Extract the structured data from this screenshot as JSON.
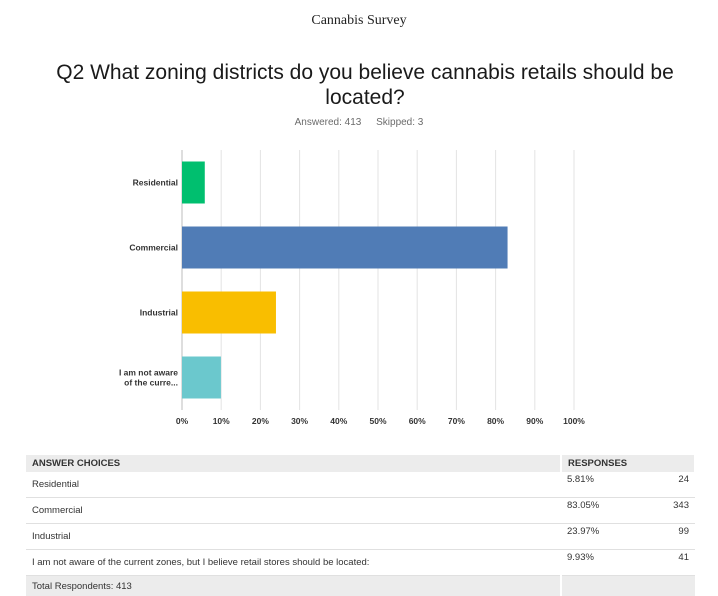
{
  "document_title": "Cannabis Survey",
  "question": {
    "title": "Q2 What zoning districts do you believe cannabis retails should be located?",
    "answered": "Answered: 413",
    "skipped": "Skipped: 3"
  },
  "chart_data": {
    "type": "bar",
    "orientation": "horizontal",
    "categories": [
      "Residential",
      "Commercial",
      "Industrial",
      "I am not aware of the curre..."
    ],
    "category_label_lines": [
      [
        "Residential"
      ],
      [
        "Commercial"
      ],
      [
        "Industrial"
      ],
      [
        "I am not aware",
        "of the curre..."
      ]
    ],
    "values": [
      5.81,
      83.05,
      23.97,
      9.93
    ],
    "colors": [
      "#00bf6f",
      "#507cb6",
      "#f9be00",
      "#6bc8cd"
    ],
    "xlim": [
      0,
      100
    ],
    "x_ticks": [
      "0%",
      "10%",
      "20%",
      "30%",
      "40%",
      "50%",
      "60%",
      "70%",
      "80%",
      "90%",
      "100%"
    ],
    "grid": true,
    "title": "",
    "xlabel": "",
    "ylabel": ""
  },
  "table": {
    "headers": [
      "ANSWER CHOICES",
      "RESPONSES",
      ""
    ],
    "rows": [
      {
        "choice": "Residential",
        "percent": "5.81%",
        "count": "24"
      },
      {
        "choice": "Commercial",
        "percent": "83.05%",
        "count": "343"
      },
      {
        "choice": "Industrial",
        "percent": "23.97%",
        "count": "99"
      },
      {
        "choice": "I am not aware of the current zones, but I believe retail stores should be located:",
        "percent": "9.93%",
        "count": "41"
      }
    ],
    "total": "Total Respondents: 413"
  }
}
